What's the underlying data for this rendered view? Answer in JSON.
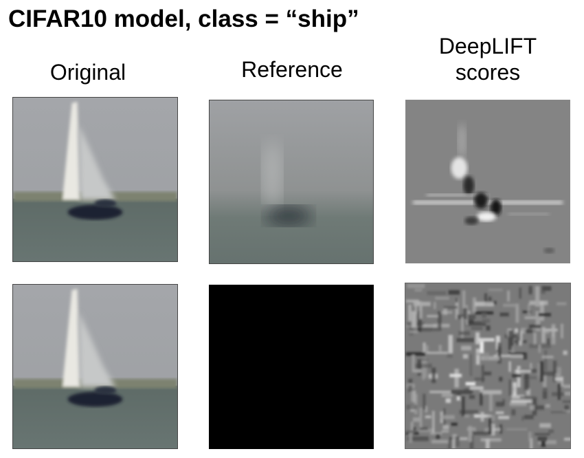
{
  "title": "CIFAR10 model, class = “ship”",
  "columns": [
    {
      "label": "Original"
    },
    {
      "label": "Reference"
    },
    {
      "label": "DeepLIFT\nscores"
    }
  ],
  "rows": [
    {
      "reference": "blurred"
    },
    {
      "reference": "black"
    }
  ]
}
